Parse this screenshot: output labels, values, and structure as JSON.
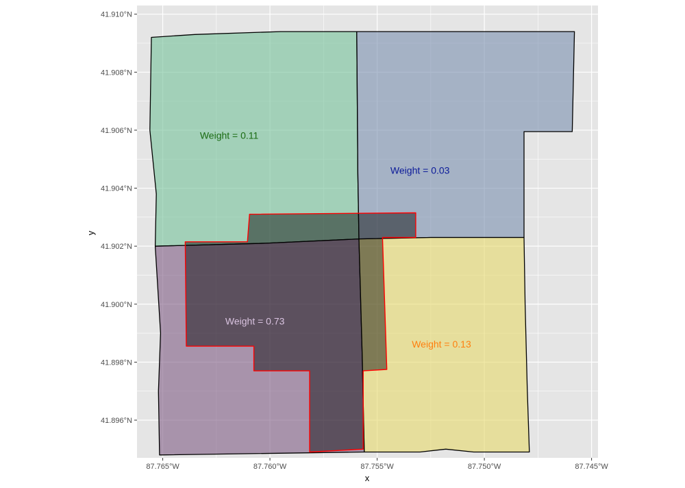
{
  "axes": {
    "xlabel": "x",
    "ylabel": "y",
    "x_ticks": [
      {
        "value": -87.765,
        "label": "87.765°W"
      },
      {
        "value": -87.76,
        "label": "87.760°W"
      },
      {
        "value": -87.755,
        "label": "87.755°W"
      },
      {
        "value": -87.75,
        "label": "87.750°W"
      },
      {
        "value": -87.745,
        "label": "87.745°W"
      }
    ],
    "y_ticks": [
      {
        "value": 41.91,
        "label": "41.910°N"
      },
      {
        "value": 41.908,
        "label": "41.908°N"
      },
      {
        "value": 41.906,
        "label": "41.906°N"
      },
      {
        "value": 41.904,
        "label": "41.904°N"
      },
      {
        "value": 41.902,
        "label": "41.902°N"
      },
      {
        "value": 41.9,
        "label": "41.900°N"
      },
      {
        "value": 41.898,
        "label": "41.898°N"
      },
      {
        "value": 41.896,
        "label": "41.896°N"
      }
    ],
    "xlim": [
      -87.7662,
      -87.7447
    ],
    "ylim": [
      41.8947,
      41.9103
    ]
  },
  "colors": {
    "panel_background": "#e5e5e5",
    "grid": "#ffffff",
    "tract_outline": "#000000",
    "target_outline": "#ff0000"
  },
  "regions": [
    {
      "id": "tract-northwest",
      "fill": "#74c199",
      "label": "Weight = 0.11",
      "label_color": "#1a6b12",
      "label_at": [
        -87.7619,
        41.9057
      ],
      "coords": [
        [
          -87.76553,
          41.9092
        ],
        [
          -87.7635,
          41.9093
        ],
        [
          -87.7595,
          41.9094
        ],
        [
          -87.75595,
          41.9094
        ],
        [
          -87.7559,
          41.9045
        ],
        [
          -87.75585,
          41.90225
        ],
        [
          -87.7602,
          41.9021
        ],
        [
          -87.76535,
          41.902
        ],
        [
          -87.7653,
          41.9038
        ],
        [
          -87.7656,
          41.906
        ]
      ]
    },
    {
      "id": "tract-northeast",
      "fill": "#7a8faf",
      "label": "Weight = 0.03",
      "label_color": "#0b1a99",
      "label_at": [
        -87.753,
        41.9045
      ],
      "coords": [
        [
          -87.75595,
          41.9094
        ],
        [
          -87.7458,
          41.9094
        ],
        [
          -87.7459,
          41.90595
        ],
        [
          -87.74815,
          41.90595
        ],
        [
          -87.74815,
          41.9023
        ],
        [
          -87.7525,
          41.9023
        ],
        [
          -87.75585,
          41.90225
        ],
        [
          -87.7559,
          41.9045
        ]
      ]
    },
    {
      "id": "tract-southwest",
      "fill": "#7f5c84",
      "label": "Weight = 0.73",
      "label_color": "#d9c3e0",
      "label_at": [
        -87.7607,
        41.8993
      ],
      "coords": [
        [
          -87.76535,
          41.902
        ],
        [
          -87.7602,
          41.9021
        ],
        [
          -87.75585,
          41.90225
        ],
        [
          -87.7557,
          41.8983
        ],
        [
          -87.7556,
          41.8949
        ],
        [
          -87.76515,
          41.8948
        ],
        [
          -87.7652,
          41.897
        ],
        [
          -87.7651,
          41.899
        ]
      ]
    },
    {
      "id": "tract-southeast",
      "fill": "#e6d96b",
      "label": "Weight = 0.13",
      "label_color": "#ff7f0e",
      "label_at": [
        -87.752,
        41.8985
      ],
      "coords": [
        [
          -87.75585,
          41.90225
        ],
        [
          -87.7525,
          41.9023
        ],
        [
          -87.74815,
          41.9023
        ],
        [
          -87.7481,
          41.9
        ],
        [
          -87.748,
          41.8971
        ],
        [
          -87.7479,
          41.8949
        ],
        [
          -87.7505,
          41.8949
        ],
        [
          -87.7518,
          41.895
        ],
        [
          -87.753,
          41.8949
        ],
        [
          -87.7556,
          41.8949
        ],
        [
          -87.7557,
          41.8983
        ]
      ]
    }
  ],
  "target_area": {
    "coords": [
      [
        -87.76095,
        41.9031
      ],
      [
        -87.7532,
        41.90315
      ],
      [
        -87.7532,
        41.9023
      ],
      [
        -87.75475,
        41.9023
      ],
      [
        -87.75455,
        41.89775
      ],
      [
        -87.75565,
        41.8977
      ],
      [
        -87.75565,
        41.895
      ],
      [
        -87.75815,
        41.8949
      ],
      [
        -87.75815,
        41.8977
      ],
      [
        -87.76075,
        41.8977
      ],
      [
        -87.76075,
        41.89855
      ],
      [
        -87.7639,
        41.89855
      ],
      [
        -87.76395,
        41.90215
      ],
      [
        -87.76105,
        41.90215
      ]
    ]
  }
}
